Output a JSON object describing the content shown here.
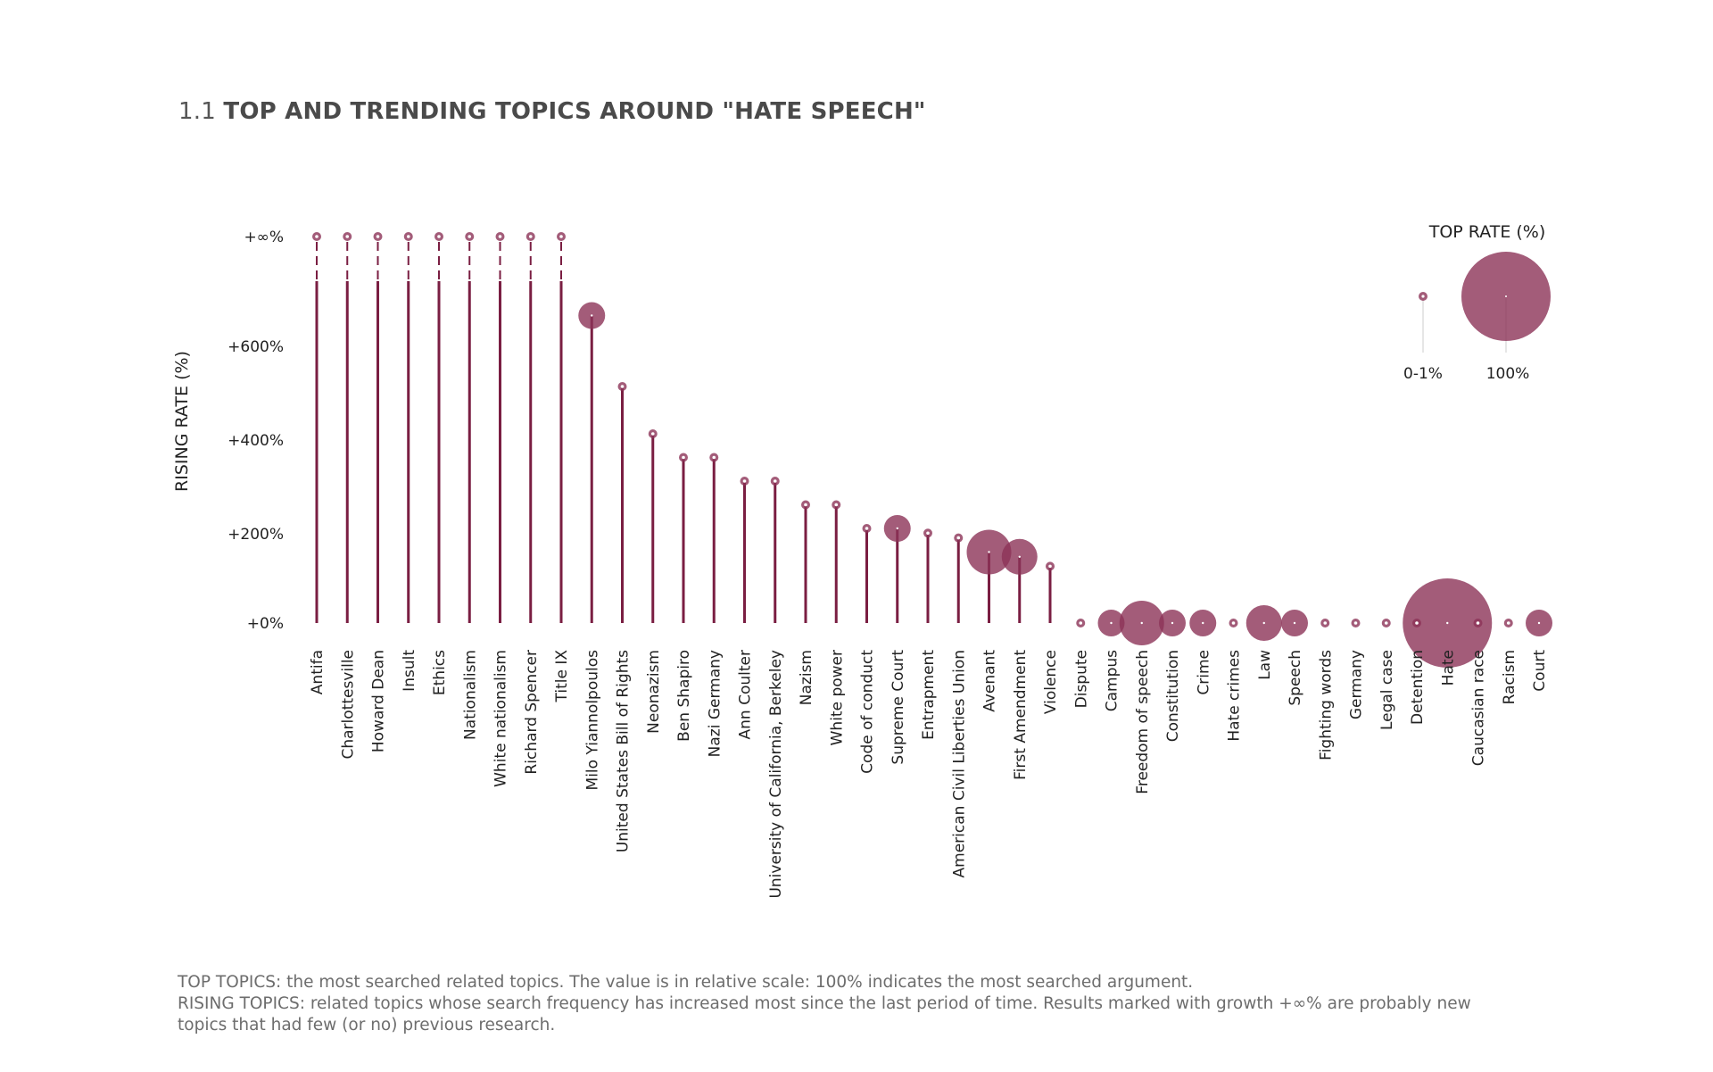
{
  "title": {
    "number": "1.1",
    "text": "TOP AND TRENDING TOPICS AROUND \"HATE SPEECH\""
  },
  "colors": {
    "accent": "#7a1e42",
    "bubble": "#8c3358",
    "text": "#222222",
    "muted": "#6d6d6d"
  },
  "chart_data": {
    "type": "scatter",
    "description_kind": "lollipop with bubble size",
    "ylabel": "RISING RATE (%)",
    "y_ticks": [
      "+0%",
      "+200%",
      "+400%",
      "+600%",
      "+∞%"
    ],
    "y_tick_values": [
      0,
      200,
      400,
      600,
      "inf"
    ],
    "legend": {
      "title": "TOP RATE (%)",
      "labels": [
        "0-1%",
        "100%"
      ]
    },
    "topics": [
      {
        "name": "Antifa",
        "rising": "inf",
        "top": 1
      },
      {
        "name": "Charlottesville",
        "rising": "inf",
        "top": 1
      },
      {
        "name": "Howard Dean",
        "rising": "inf",
        "top": 1
      },
      {
        "name": "Insult",
        "rising": "inf",
        "top": 1
      },
      {
        "name": "Ethics",
        "rising": "inf",
        "top": 1
      },
      {
        "name": "Nationalism",
        "rising": "inf",
        "top": 1
      },
      {
        "name": "White nationalism",
        "rising": "inf",
        "top": 1
      },
      {
        "name": "Richard Spencer",
        "rising": "inf",
        "top": 1
      },
      {
        "name": "Title IX",
        "rising": "inf",
        "top": 1
      },
      {
        "name": "Milo Yiannolpoulos",
        "rising": 650,
        "top": 9
      },
      {
        "name": "United States Bill of Rights",
        "rising": 500,
        "top": 1
      },
      {
        "name": "Neonazism",
        "rising": 400,
        "top": 1
      },
      {
        "name": "Ben Shapiro",
        "rising": 350,
        "top": 1
      },
      {
        "name": "Nazi Germany",
        "rising": 350,
        "top": 1
      },
      {
        "name": "Ann Coulter",
        "rising": 300,
        "top": 1
      },
      {
        "name": "University of California, Berkeley",
        "rising": 300,
        "top": 1
      },
      {
        "name": "Nazism",
        "rising": 250,
        "top": 1
      },
      {
        "name": "White power",
        "rising": 250,
        "top": 1
      },
      {
        "name": "Code of conduct",
        "rising": 200,
        "top": 1
      },
      {
        "name": "Supreme Court",
        "rising": 200,
        "top": 9
      },
      {
        "name": "Entrapment",
        "rising": 190,
        "top": 1
      },
      {
        "name": "American Civil Liberties Union",
        "rising": 180,
        "top": 1
      },
      {
        "name": "Avenant",
        "rising": 150,
        "top": 25
      },
      {
        "name": "First Amendment",
        "rising": 140,
        "top": 16
      },
      {
        "name": "Violence",
        "rising": 120,
        "top": 1
      },
      {
        "name": "Dispute",
        "rising": 0,
        "top": 1
      },
      {
        "name": "Campus",
        "rising": 0,
        "top": 9
      },
      {
        "name": "Freedom of speech",
        "rising": 0,
        "top": 25
      },
      {
        "name": "Constitution",
        "rising": 0,
        "top": 9
      },
      {
        "name": "Crime",
        "rising": 0,
        "top": 9
      },
      {
        "name": "Hate crimes",
        "rising": 0,
        "top": 1
      },
      {
        "name": "Law",
        "rising": 0,
        "top": 16
      },
      {
        "name": "Speech",
        "rising": 0,
        "top": 9
      },
      {
        "name": "Fighting words",
        "rising": 0,
        "top": 1
      },
      {
        "name": "Germany",
        "rising": 0,
        "top": 1
      },
      {
        "name": "Legal case",
        "rising": 0,
        "top": 1
      },
      {
        "name": "Detention",
        "rising": 0,
        "top": 1
      },
      {
        "name": "Hate",
        "rising": 0,
        "top": 100
      },
      {
        "name": "Caucasian race",
        "rising": 0,
        "top": 1
      },
      {
        "name": "Racism",
        "rising": 0,
        "top": 1
      },
      {
        "name": "Court",
        "rising": 0,
        "top": 9
      }
    ]
  },
  "footnotes": {
    "top_topics": "TOP TOPICS: the most searched related topics. The value is in relative scale: 100% indicates the most searched argument.",
    "rising_topics_1": "RISING TOPICS: related topics whose search frequency has increased most since the last period of time. Results marked with growth +∞% are probably new",
    "rising_topics_2": "topics that had few (or no) previous research."
  }
}
